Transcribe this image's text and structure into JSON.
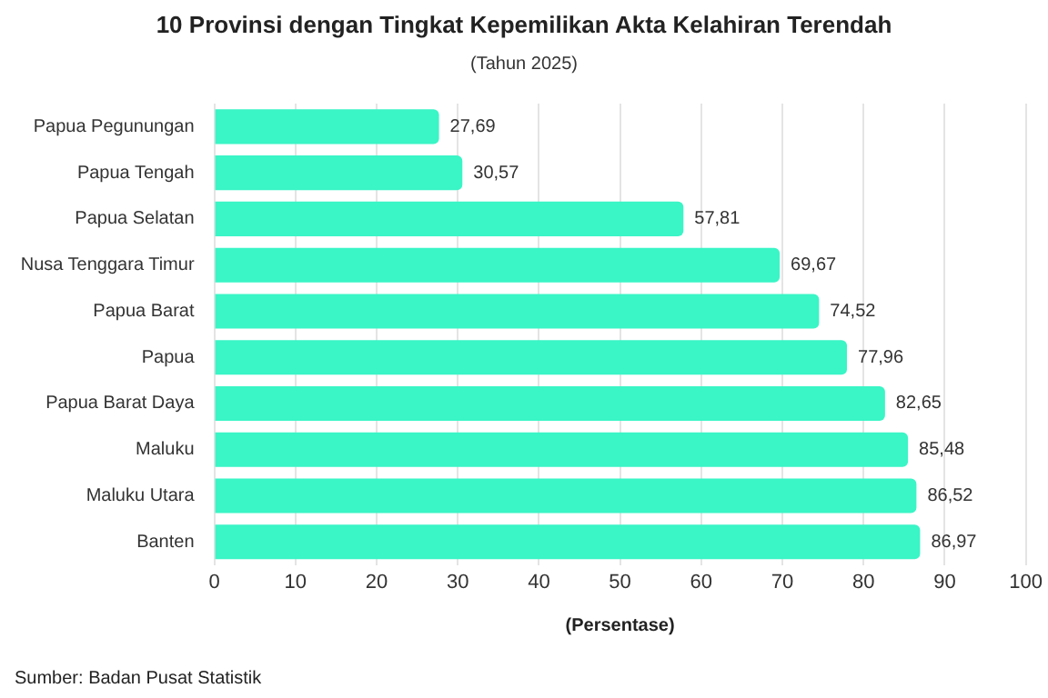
{
  "chart_data": {
    "type": "bar",
    "orientation": "horizontal",
    "title": "10 Provinsi dengan Tingkat Kepemilikan Akta Kelahiran Terendah",
    "subtitle": "(Tahun 2025)",
    "xlabel": "(Persentase)",
    "categories": [
      "Papua Pegunungan",
      "Papua Tengah",
      "Papua Selatan",
      "Nusa Tenggara Timur",
      "Papua Barat",
      "Papua",
      "Papua Barat Daya",
      "Maluku",
      "Maluku Utara",
      "Banten"
    ],
    "values": [
      27.69,
      30.57,
      57.81,
      69.67,
      74.52,
      77.96,
      82.65,
      85.48,
      86.52,
      86.97
    ],
    "value_labels": [
      "27,69",
      "30,57",
      "57,81",
      "69,67",
      "74,52",
      "77,96",
      "82,65",
      "85,48",
      "86,52",
      "86,97"
    ],
    "color": "#3af5c6",
    "xlim": [
      0,
      100
    ],
    "xticks": [
      0,
      10,
      20,
      30,
      40,
      50,
      60,
      70,
      80,
      90,
      100
    ],
    "grid": "x",
    "legend": false,
    "annotations": [
      "Sumber: Badan Pusat Statistik"
    ]
  }
}
